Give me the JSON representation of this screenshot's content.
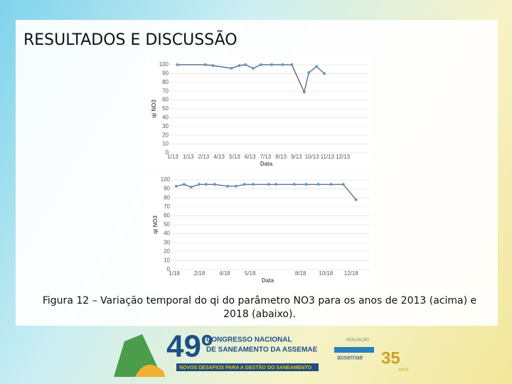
{
  "title": "RESULTADOS E DISCUSSÃO",
  "chart_data": [
    {
      "type": "line",
      "ylabel": "qi NO3",
      "xlabel": "Data",
      "x": [
        0.3,
        2.1,
        2.6,
        3.8,
        4.3,
        4.7,
        5.2,
        5.7,
        6.4,
        7.1,
        7.7,
        8.5,
        8.8,
        9.3,
        9.8
      ],
      "series": [
        {
          "color": "#5b9bd5",
          "line_color": "#4d5560",
          "values": [
            100,
            100,
            99,
            96,
            99,
            100,
            96,
            100,
            100,
            100,
            100,
            69,
            91,
            98,
            90
          ]
        }
      ],
      "xlim": [
        0,
        12.1
      ],
      "xticks": [
        {
          "value": 0,
          "label": "1/13"
        },
        {
          "value": 1,
          "label": "1/13"
        },
        {
          "value": 2,
          "label": "2/13"
        },
        {
          "value": 3,
          "label": "4/13"
        },
        {
          "value": 4,
          "label": "5/13"
        },
        {
          "value": 5,
          "label": "6/13"
        },
        {
          "value": 6,
          "label": "7/13"
        },
        {
          "value": 7,
          "label": "8/13"
        },
        {
          "value": 8,
          "label": "9/13"
        },
        {
          "value": 9,
          "label": "10/13"
        },
        {
          "value": 10,
          "label": "11/13"
        },
        {
          "value": 11,
          "label": "12/13"
        }
      ],
      "ylim": [
        0,
        100
      ],
      "yticks": [
        0,
        10,
        20,
        30,
        40,
        50,
        60,
        70,
        80,
        90,
        100
      ],
      "grid": true
    },
    {
      "type": "line",
      "ylabel": "qi NO3",
      "xlabel": "Data",
      "x": [
        0.08,
        0.39,
        0.67,
        0.98,
        1.26,
        1.6,
        2.11,
        2.44,
        2.78,
        3.12,
        3.74,
        4.02,
        4.75,
        5.22,
        5.7,
        6.21,
        6.69,
        7.19
      ],
      "series": [
        {
          "color": "#5b9bd5",
          "line_color": "#4d5560",
          "values": [
            93,
            95,
            92,
            95,
            95,
            95,
            93,
            93,
            95,
            95,
            95,
            95,
            95,
            95,
            95,
            95,
            95,
            78
          ]
        }
      ],
      "xlim": [
        0,
        7.4
      ],
      "xticks": [
        {
          "value": 0,
          "label": "1/18"
        },
        {
          "value": 1,
          "label": "2/18"
        },
        {
          "value": 2,
          "label": "4/18"
        },
        {
          "value": 3,
          "label": "5/18"
        },
        {
          "value": 5,
          "label": "8/18"
        },
        {
          "value": 6,
          "label": "10/18"
        },
        {
          "value": 7,
          "label": "12/18"
        }
      ],
      "ylim": [
        0,
        100
      ],
      "yticks": [
        0,
        10,
        20,
        30,
        40,
        50,
        60,
        70,
        80,
        90,
        100
      ],
      "grid": true
    }
  ],
  "caption": "Figura 12 – Variação temporal do qi do parâmetro NO3 para os anos de 2013 (acima) e 2018 (abaixo).",
  "footer": {
    "edition": "49º",
    "line1": "CONGRESSO NACIONAL",
    "line2": "DE SANEAMENTO DA ASSEMAE",
    "tagline": "NOVOS DESAFIOS PARA A GESTÃO DO SANEAMENTO",
    "realizacao": "REALIZAÇÃO",
    "org": "assemae",
    "anniversary": "35",
    "anos": "ANOS"
  }
}
